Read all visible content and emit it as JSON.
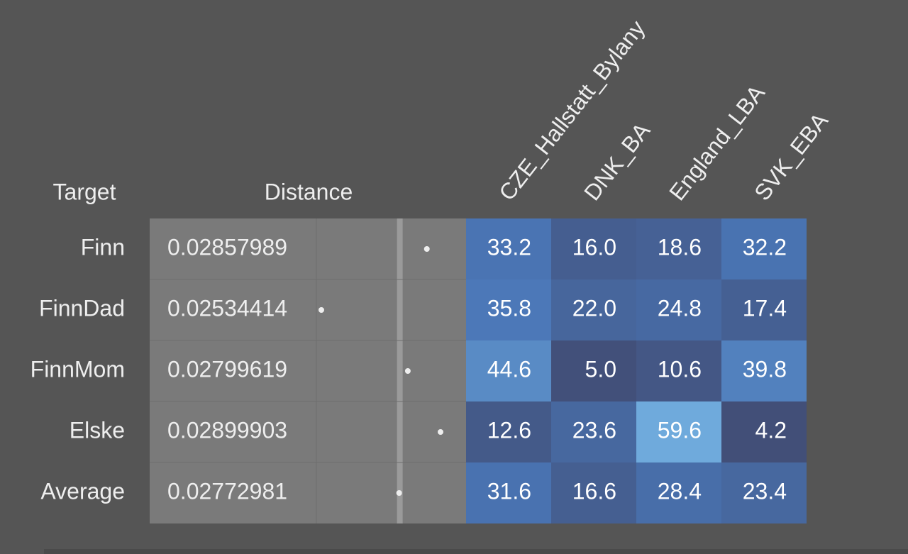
{
  "header": {
    "target": "Target",
    "distance": "Distance"
  },
  "columns": [
    "CZE_Hallstatt_Bylany",
    "DNK_BA",
    "England_LBA",
    "SVK_EBA"
  ],
  "rows": [
    {
      "target": "Finn",
      "distance": "0.02857989",
      "values": [
        "33.2",
        "16.0",
        "18.6",
        "32.2"
      ]
    },
    {
      "target": "FinnDad",
      "distance": "0.02534414",
      "values": [
        "35.8",
        "22.0",
        "24.8",
        "17.4"
      ]
    },
    {
      "target": "FinnMom",
      "distance": "0.02799619",
      "values": [
        "44.6",
        "5.0",
        "10.6",
        "39.8"
      ]
    },
    {
      "target": "Elske",
      "distance": "0.02899903",
      "values": [
        "12.6",
        "23.6",
        "59.6",
        "4.2"
      ]
    },
    {
      "target": "Average",
      "distance": "0.02772981",
      "values": [
        "31.6",
        "16.6",
        "28.4",
        "23.4"
      ]
    }
  ]
}
